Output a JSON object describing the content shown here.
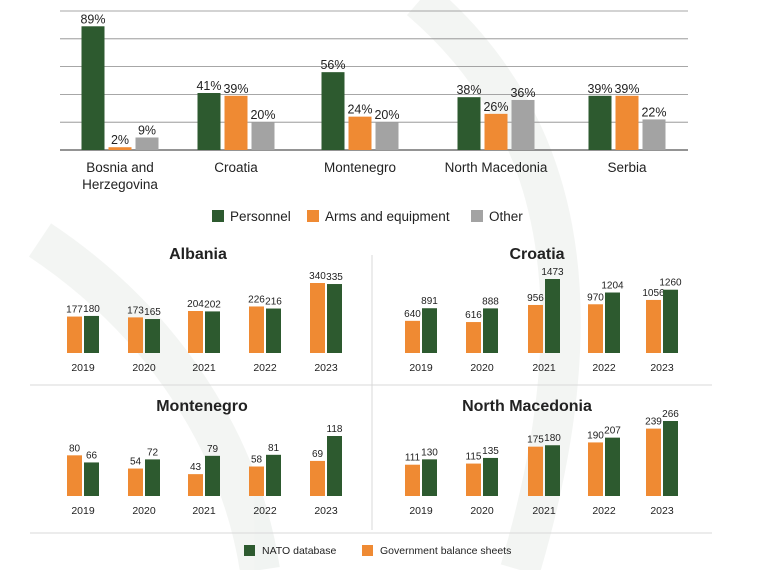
{
  "colors": {
    "personnel": "#2d5a2f",
    "arms": "#ef8a33",
    "other": "#a3a3a3",
    "nato": "#2d5a2f",
    "gov": "#ef8a33",
    "grid": "#8a8a8a",
    "text": "#222222"
  },
  "chart_data": [
    {
      "type": "bar",
      "categories": [
        "Bosnia and Herzegovina",
        "Croatia",
        "Montenegro",
        "North Macedonia",
        "Serbia"
      ],
      "series": [
        {
          "name": "Personnel",
          "values": [
            89,
            41,
            56,
            38,
            39
          ],
          "labels": [
            "89%",
            "41%",
            "56%",
            "38%",
            "39%"
          ]
        },
        {
          "name": "Arms and equipment",
          "values": [
            2,
            39,
            24,
            26,
            39
          ],
          "labels": [
            "2%",
            "39%",
            "24%",
            "26%",
            "39%"
          ]
        },
        {
          "name": "Other",
          "values": [
            9,
            20,
            20,
            36,
            22
          ],
          "labels": [
            "9%",
            "20%",
            "20%",
            "36%",
            "22%"
          ]
        }
      ],
      "ylim": [
        0,
        100
      ],
      "grid": true,
      "legend": "bottom"
    },
    {
      "type": "bar",
      "title": "Albania",
      "categories": [
        "2019",
        "2020",
        "2021",
        "2022",
        "2023"
      ],
      "series": [
        {
          "name": "Government balance sheets",
          "values": [
            177,
            173,
            204,
            226,
            340
          ]
        },
        {
          "name": "NATO database",
          "values": [
            180,
            165,
            202,
            216,
            335
          ]
        }
      ]
    },
    {
      "type": "bar",
      "title": "Croatia",
      "categories": [
        "2019",
        "2020",
        "2021",
        "2022",
        "2023"
      ],
      "series": [
        {
          "name": "Government balance sheets",
          "values": [
            640,
            616,
            956,
            970,
            1056
          ]
        },
        {
          "name": "NATO database",
          "values": [
            891,
            888,
            1473,
            1204,
            1260
          ]
        }
      ]
    },
    {
      "type": "bar",
      "title": "Montenegro",
      "categories": [
        "2019",
        "2020",
        "2021",
        "2022",
        "2023"
      ],
      "series": [
        {
          "name": "Government balance sheets",
          "values": [
            80,
            54,
            43,
            58,
            69
          ]
        },
        {
          "name": "NATO database",
          "values": [
            66,
            72,
            79,
            81,
            118
          ]
        }
      ]
    },
    {
      "type": "bar",
      "title": "North Macedonia",
      "categories": [
        "2019",
        "2020",
        "2021",
        "2022",
        "2023"
      ],
      "series": [
        {
          "name": "Government balance sheets",
          "values": [
            111,
            115,
            175,
            190,
            239
          ]
        },
        {
          "name": "NATO database",
          "values": [
            130,
            135,
            180,
            207,
            266
          ]
        }
      ]
    }
  ],
  "legends": {
    "top": [
      "Personnel",
      "Arms and equipment",
      "Other"
    ],
    "bottom": [
      "NATO database",
      "Government balance sheets"
    ]
  }
}
